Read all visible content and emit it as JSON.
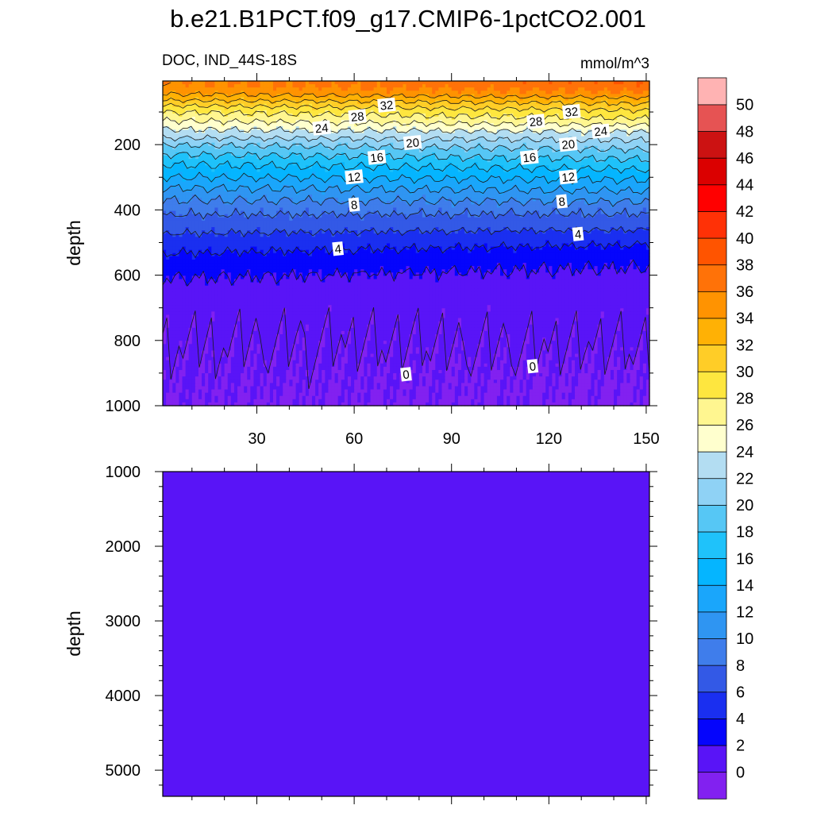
{
  "title": "b.e21.B1PCT.f09_g17.CMIP6-1pctCO2.001",
  "left_string": "DOC, IND_44S-18S",
  "right_string": "mmol/m^3",
  "colors": [
    "#8221f0",
    "#5914f7",
    "#0505fc",
    "#1a2ff0",
    "#3359e6",
    "#3f7deb",
    "#2f95f2",
    "#1aa6fb",
    "#05b5ff",
    "#1fc2fa",
    "#56c7f5",
    "#8fd2f5",
    "#b3ddf2",
    "#ffffce",
    "#fff690",
    "#fee63f",
    "#ffcd27",
    "#ffb105",
    "#ff9301",
    "#ff7208",
    "#ff5400",
    "#ff3106",
    "#ff0000",
    "#db0000",
    "#cc1212",
    "#e65353",
    "#ffb3b3"
  ],
  "chart_data": [
    {
      "type": "heatmap",
      "name": "upper",
      "ylabel": "depth",
      "xlim": [
        1,
        151
      ],
      "ylim": [
        5,
        1000
      ],
      "y_reversed": true,
      "xticks": [
        30,
        60,
        90,
        120,
        150
      ],
      "yticks": [
        200,
        400,
        600,
        800,
        1000
      ],
      "contour_levels": [
        0,
        2,
        4,
        6,
        8,
        10,
        12,
        14,
        16,
        18,
        20,
        22,
        24,
        26,
        28,
        30,
        32,
        34,
        36,
        38,
        40,
        42,
        44,
        46,
        48,
        50
      ],
      "profile_depth": [
        5,
        20,
        40,
        60,
        80,
        100,
        120,
        140,
        160,
        180,
        200,
        230,
        260,
        300,
        350,
        400,
        450,
        500,
        550,
        600,
        650,
        700,
        800,
        900,
        1000
      ],
      "profile_left": [
        36,
        35.5,
        34.5,
        32.5,
        30,
        28,
        26.5,
        25,
        23.5,
        22,
        20,
        18,
        16,
        14,
        11,
        8.5,
        6.8,
        5,
        3.5,
        2.2,
        1.2,
        0.5,
        0.25,
        0.1,
        -0.1
      ],
      "profile_right": [
        38,
        37.5,
        36,
        33.5,
        31.5,
        29.5,
        28,
        26,
        24,
        22.5,
        21,
        19,
        17,
        14.5,
        11.5,
        8.5,
        6.5,
        4.2,
        2.5,
        1.5,
        0.8,
        0.5,
        0.3,
        -0.05,
        -0.2
      ],
      "contour_labels": [
        {
          "text": "32",
          "x": 70,
          "y": 80
        },
        {
          "text": "28",
          "x": 61,
          "y": 115
        },
        {
          "text": "24",
          "x": 50,
          "y": 150
        },
        {
          "text": "20",
          "x": 78,
          "y": 195
        },
        {
          "text": "16",
          "x": 67,
          "y": 240
        },
        {
          "text": "12",
          "x": 60,
          "y": 300
        },
        {
          "text": "8",
          "x": 60,
          "y": 385
        },
        {
          "text": "4",
          "x": 55,
          "y": 520
        },
        {
          "text": "0",
          "x": 76,
          "y": 905
        },
        {
          "text": "32",
          "x": 127,
          "y": 100
        },
        {
          "text": "28",
          "x": 116,
          "y": 130
        },
        {
          "text": "24",
          "x": 136,
          "y": 160
        },
        {
          "text": "20",
          "x": 126,
          "y": 200
        },
        {
          "text": "16",
          "x": 114,
          "y": 240
        },
        {
          "text": "12",
          "x": 126,
          "y": 300
        },
        {
          "text": "8",
          "x": 124,
          "y": 375
        },
        {
          "text": "4",
          "x": 129,
          "y": 475
        },
        {
          "text": "0",
          "x": 115,
          "y": 880
        }
      ]
    },
    {
      "type": "heatmap",
      "name": "lower",
      "ylabel": "depth",
      "xlim": [
        1,
        151
      ],
      "ylim": [
        1000,
        5350
      ],
      "y_reversed": true,
      "yticks": [
        1000,
        2000,
        3000,
        4000,
        5000
      ],
      "fill_value": 0
    }
  ],
  "colorbar": {
    "labels": [
      "50",
      "48",
      "46",
      "44",
      "42",
      "40",
      "38",
      "36",
      "34",
      "32",
      "30",
      "28",
      "26",
      "24",
      "22",
      "20",
      "18",
      "16",
      "14",
      "12",
      "10",
      "8",
      "6",
      "4",
      "2",
      "0"
    ]
  }
}
